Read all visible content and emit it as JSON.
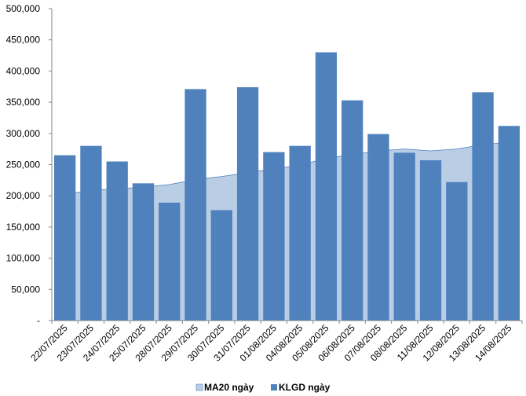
{
  "chart_data": {
    "type": "bar",
    "categories": [
      "22/07/2025",
      "23/07/2025",
      "24/07/2025",
      "25/07/2025",
      "28/07/2025",
      "29/07/2025",
      "30/07/2025",
      "31/07/2025",
      "01/08/2025",
      "04/08/2025",
      "05/08/2025",
      "06/08/2025",
      "07/08/2025",
      "08/08/2025",
      "11/08/2025",
      "12/08/2025",
      "13/08/2025",
      "14/08/2025"
    ],
    "series": [
      {
        "name": "KLGD ngày",
        "type": "bar",
        "color": "#4F81BD",
        "values": [
          265000,
          280000,
          255000,
          220000,
          189000,
          371000,
          177000,
          374000,
          270000,
          280000,
          430000,
          353000,
          299000,
          269000,
          257000,
          222000,
          366000,
          312000
        ]
      },
      {
        "name": "MA20 ngày",
        "type": "area",
        "color": "#B9CDE5",
        "line_color": "#4F81BD",
        "values": [
          202000,
          209000,
          211000,
          214000,
          218000,
          226000,
          231000,
          237000,
          243000,
          249000,
          260000,
          266000,
          272000,
          275000,
          272000,
          275000,
          282000,
          286000
        ]
      }
    ],
    "ylim": [
      0,
      500000
    ],
    "y_ticks": [
      "-",
      "50,000",
      "100,000",
      "150,000",
      "200,000",
      "250,000",
      "300,000",
      "350,000",
      "400,000",
      "450,000",
      "500,000"
    ],
    "y_tick_values": [
      0,
      50000,
      100000,
      150000,
      200000,
      250000,
      300000,
      350000,
      400000,
      450000,
      500000
    ],
    "grid": false,
    "legend_position": "bottom-center",
    "xlabel": "",
    "ylabel": ""
  }
}
